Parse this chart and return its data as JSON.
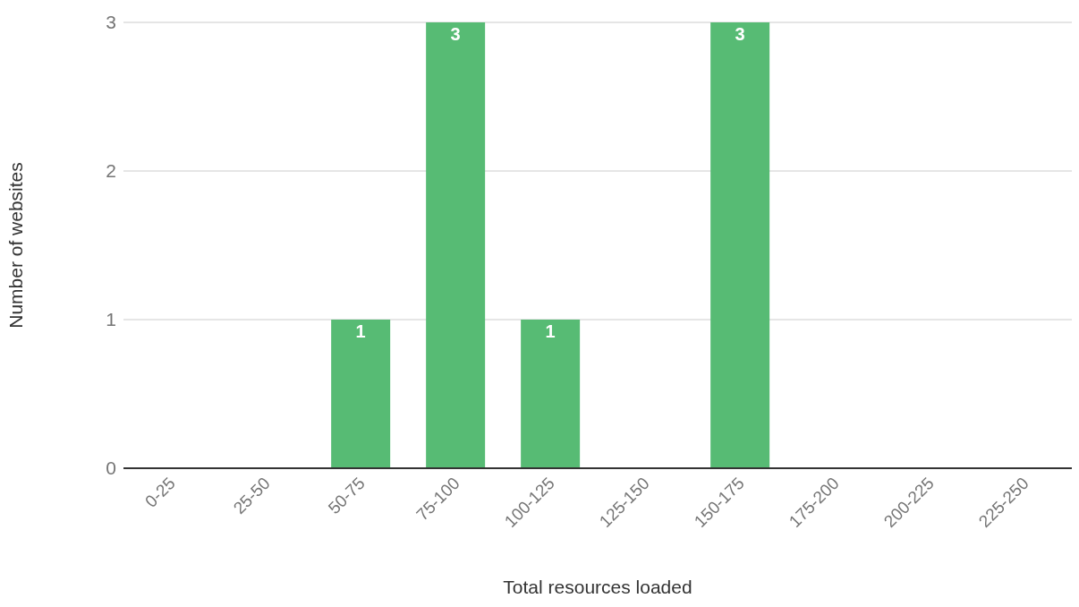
{
  "chart_data": {
    "type": "bar",
    "xlabel": "Total resources loaded",
    "ylabel": "Number of websites",
    "categories": [
      "0-25",
      "25-50",
      "50-75",
      "75-100",
      "100-125",
      "125-150",
      "150-175",
      "175-200",
      "200-225",
      "225-250"
    ],
    "values": [
      0,
      0,
      1,
      3,
      1,
      0,
      3,
      0,
      0,
      0
    ],
    "value_labels": [
      null,
      null,
      "1",
      "3",
      "1",
      null,
      "3",
      null,
      null,
      null
    ],
    "color": "#57bb74",
    "ylim": [
      0,
      3
    ],
    "yticks": [
      0,
      1,
      2,
      3
    ],
    "grid": "y",
    "legend": false
  }
}
